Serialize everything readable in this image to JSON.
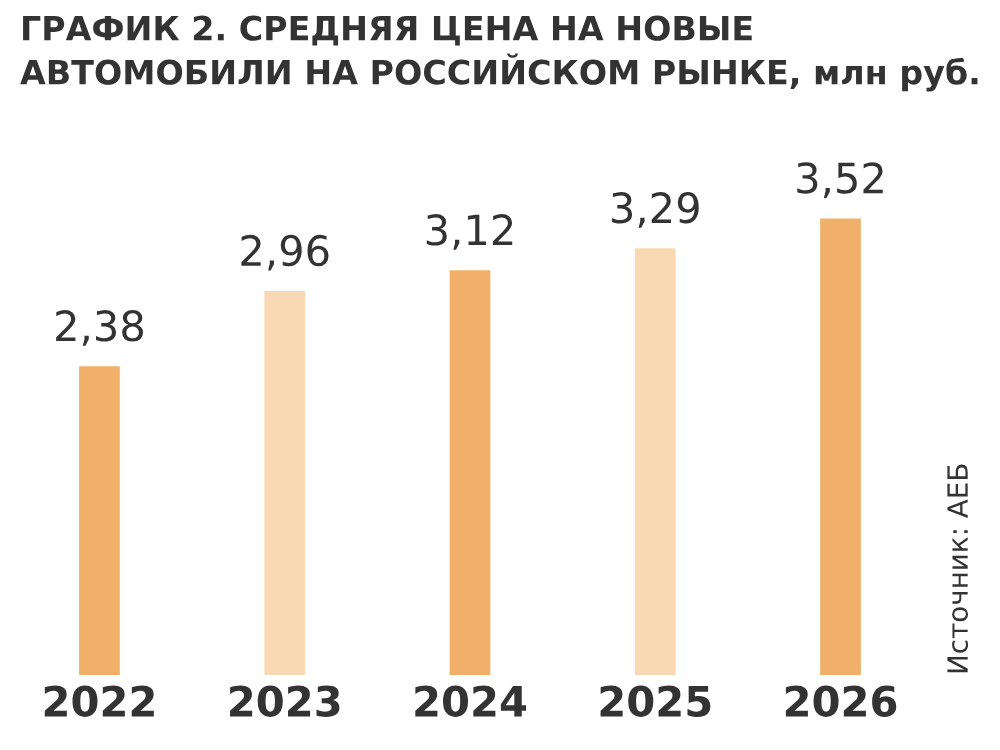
{
  "chart_data": {
    "type": "bar",
    "title": "ГРАФИК 2. СРЕДНЯЯ ЦЕНА НА НОВЫЕ АВТОМОБИЛИ НА РОССИЙСКОМ РЫНКЕ, млн руб.",
    "categories": [
      "2022",
      "2023",
      "2024",
      "2025",
      "2026"
    ],
    "values": [
      2.38,
      2.96,
      3.12,
      3.29,
      3.52
    ],
    "colors": [
      "#f0b06a",
      "#f8d9b3",
      "#f0b06a",
      "#f8d9b3",
      "#f0b06a"
    ],
    "value_labels": [
      "2,38",
      "2,96",
      "3,12",
      "3,29",
      "3,52"
    ],
    "annotations": [
      "Источник: АЕБ"
    ]
  }
}
